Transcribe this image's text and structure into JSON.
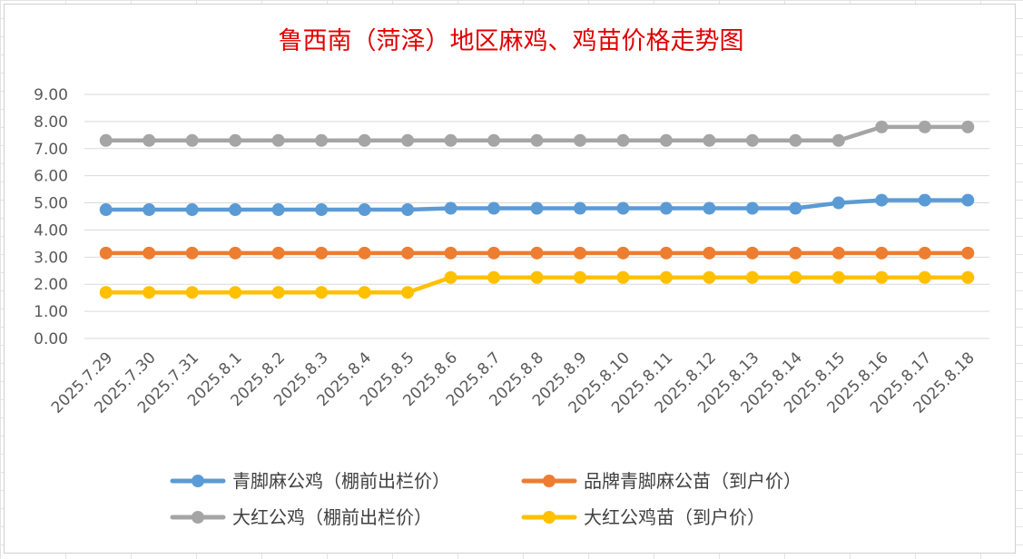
{
  "chart_data": {
    "type": "line",
    "title": "鲁西南（菏泽）地区麻鸡、鸡苗价格走势图",
    "xlabel": "",
    "ylabel": "",
    "ylim": [
      0,
      9
    ],
    "yticks": [
      "0.00",
      "1.00",
      "2.00",
      "3.00",
      "4.00",
      "5.00",
      "6.00",
      "7.00",
      "8.00",
      "9.00"
    ],
    "grid": true,
    "legend_position": "bottom",
    "categories": [
      "2025.7.29",
      "2025.7.30",
      "2025.7.31",
      "2025.8.1",
      "2025.8.2",
      "2025.8.3",
      "2025.8.4",
      "2025.8.5",
      "2025.8.6",
      "2025.8.7",
      "2025.8.8",
      "2025.8.9",
      "2025.8.10",
      "2025.8.11",
      "2025.8.12",
      "2025.8.13",
      "2025.8.14",
      "2025.8.15",
      "2025.8.16",
      "2025.8.17",
      "2025.8.18"
    ],
    "series": [
      {
        "name": "青脚麻公鸡（棚前出栏价）",
        "color": "#5b9bd5",
        "values": [
          4.75,
          4.75,
          4.75,
          4.75,
          4.75,
          4.75,
          4.75,
          4.75,
          4.8,
          4.8,
          4.8,
          4.8,
          4.8,
          4.8,
          4.8,
          4.8,
          4.8,
          5.0,
          5.1,
          5.1,
          5.1
        ]
      },
      {
        "name": "品牌青脚麻公苗（到户价）",
        "color": "#ed7d31",
        "values": [
          3.15,
          3.15,
          3.15,
          3.15,
          3.15,
          3.15,
          3.15,
          3.15,
          3.15,
          3.15,
          3.15,
          3.15,
          3.15,
          3.15,
          3.15,
          3.15,
          3.15,
          3.15,
          3.15,
          3.15,
          3.15
        ]
      },
      {
        "name": "大红公鸡（棚前出栏价）",
        "color": "#a5a5a5",
        "values": [
          7.3,
          7.3,
          7.3,
          7.3,
          7.3,
          7.3,
          7.3,
          7.3,
          7.3,
          7.3,
          7.3,
          7.3,
          7.3,
          7.3,
          7.3,
          7.3,
          7.3,
          7.3,
          7.8,
          7.8,
          7.8
        ]
      },
      {
        "name": "大红公鸡苗（到户价）",
        "color": "#ffc000",
        "values": [
          1.7,
          1.7,
          1.7,
          1.7,
          1.7,
          1.7,
          1.7,
          1.7,
          2.25,
          2.25,
          2.25,
          2.25,
          2.25,
          2.25,
          2.25,
          2.25,
          2.25,
          2.25,
          2.25,
          2.25,
          2.25
        ]
      }
    ]
  }
}
